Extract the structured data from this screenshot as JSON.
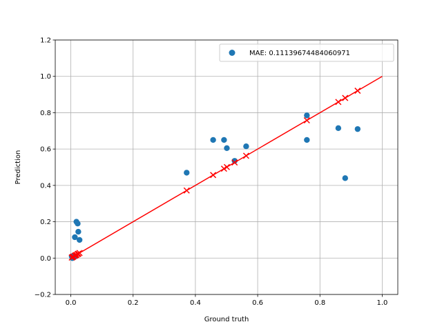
{
  "chart_data": {
    "type": "scatter",
    "xlabel": "Ground truth",
    "ylabel": "Prediction",
    "xlim": [
      -0.05,
      1.05
    ],
    "ylim": [
      -0.2,
      1.2
    ],
    "xticks": [
      0.0,
      0.2,
      0.4,
      0.6,
      0.8,
      1.0
    ],
    "xtick_labels": [
      "0.0",
      "0.2",
      "0.4",
      "0.6",
      "0.8",
      "1.0"
    ],
    "yticks": [
      -0.2,
      0.0,
      0.2,
      0.4,
      0.6,
      0.8,
      1.0,
      1.2
    ],
    "ytick_labels": [
      "−0.2",
      "0.0",
      "0.2",
      "0.4",
      "0.6",
      "0.8",
      "1.0",
      "1.2"
    ],
    "grid": true,
    "legend_position": "top-right",
    "legend_entries": [
      "MAE: 0.11139674484060971"
    ],
    "colors": {
      "scatter": "#1f77b4",
      "line": "#ff0000",
      "markers": "#ff0000"
    },
    "series": [
      {
        "name": "MAE: 0.11139674484060971",
        "kind": "scatter",
        "x": [
          0.003,
          0.005,
          0.008,
          0.013,
          0.018,
          0.022,
          0.024,
          0.028,
          0.015,
          0.372,
          0.457,
          0.492,
          0.501,
          0.526,
          0.563,
          0.758,
          0.758,
          0.859,
          0.881,
          0.921
        ],
        "y": [
          0.01,
          0.0,
          0.005,
          0.115,
          0.2,
          0.19,
          0.145,
          0.1,
          0.01,
          0.47,
          0.65,
          0.65,
          0.605,
          0.535,
          0.615,
          0.785,
          0.65,
          0.715,
          0.44,
          0.71
        ]
      },
      {
        "kind": "line",
        "x": [
          0.0,
          1.0
        ],
        "y": [
          0.0,
          1.0
        ]
      },
      {
        "kind": "x-markers",
        "x": [
          0.003,
          0.005,
          0.008,
          0.013,
          0.018,
          0.022,
          0.024,
          0.028,
          0.015,
          0.372,
          0.457,
          0.492,
          0.501,
          0.526,
          0.563,
          0.758,
          0.859,
          0.881,
          0.921
        ],
        "y": [
          0.003,
          0.005,
          0.008,
          0.013,
          0.018,
          0.022,
          0.024,
          0.028,
          0.015,
          0.372,
          0.457,
          0.492,
          0.501,
          0.526,
          0.563,
          0.758,
          0.859,
          0.881,
          0.921
        ]
      }
    ]
  }
}
